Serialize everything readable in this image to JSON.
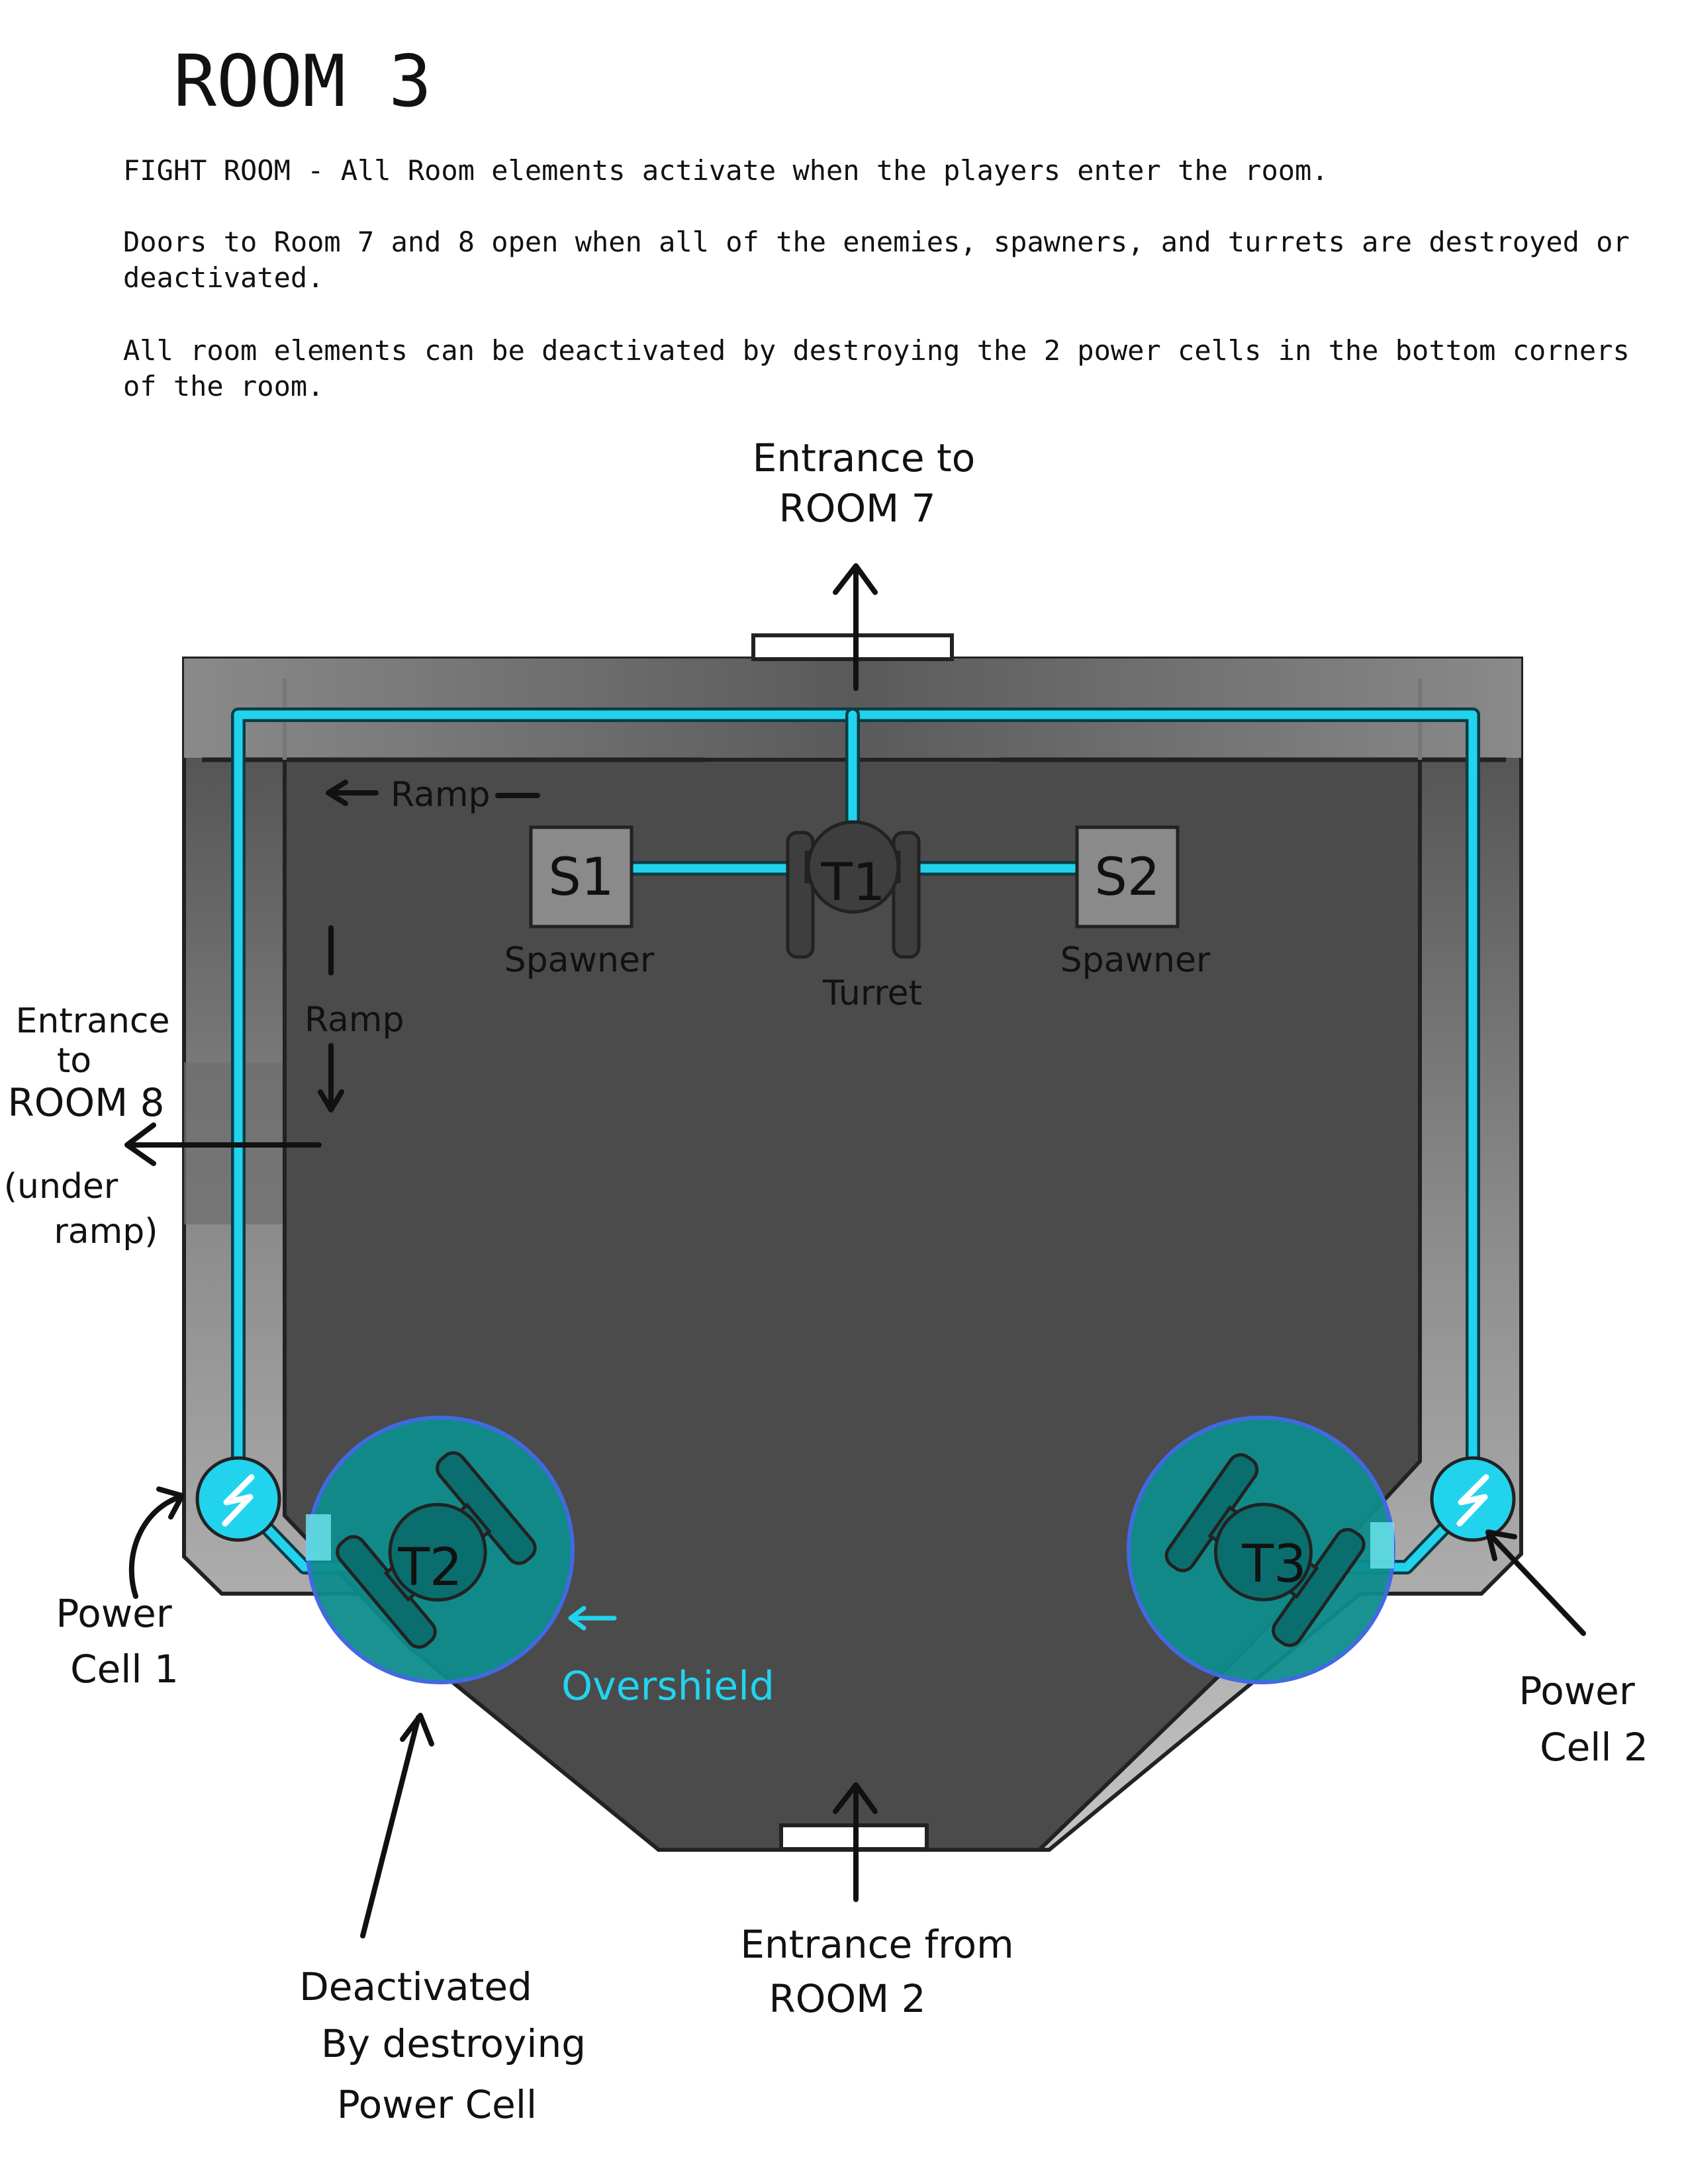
{
  "title": "ROOM 3",
  "description": {
    "line1": "FIGHT ROOM - All Room elements activate when the players enter the room.",
    "line2a": "Doors to Room 7 and 8 open when all of the enemies, spawners, and turrets are destroyed or",
    "line2b": "deactivated.",
    "line3a": "All room elements can be deactivated by destroying the 2 power cells in the bottom corners",
    "line3b": "of the room."
  },
  "labels": {
    "room7_line1": "Entrance to",
    "room7_line2": "ROOM 7",
    "room8_line1": "Entrance",
    "room8_line2": "to",
    "room8_line3": "ROOM 8",
    "room8_note1": "(under",
    "room8_note2": "ramp)",
    "room2_line1": "Entrance from",
    "room2_line2": "ROOM 2",
    "ramp_top": "Ramp",
    "ramp_side": "Ramp",
    "spawner1": "Spawner",
    "spawner2": "Spawner",
    "turret": "Turret",
    "power_cell_1_line1": "Power",
    "power_cell_1_line2": "Cell 1",
    "power_cell_2_line1": "Power",
    "power_cell_2_line2": "Cell 2",
    "overshield": "Overshield",
    "deactivated_line1": "Deactivated",
    "deactivated_line2": "By destroying",
    "deactivated_line3": "Power Cell"
  },
  "elements": {
    "s1": "S1",
    "s2": "S2",
    "t1": "T1",
    "t2": "T2",
    "t3": "T3"
  },
  "colors": {
    "power_line": "#22d3ee",
    "floor": "#4b4b4b",
    "ramp": "#b3b3b3",
    "overshield_fill": "#0f8c8c",
    "overshield_ring": "#4169e1"
  }
}
